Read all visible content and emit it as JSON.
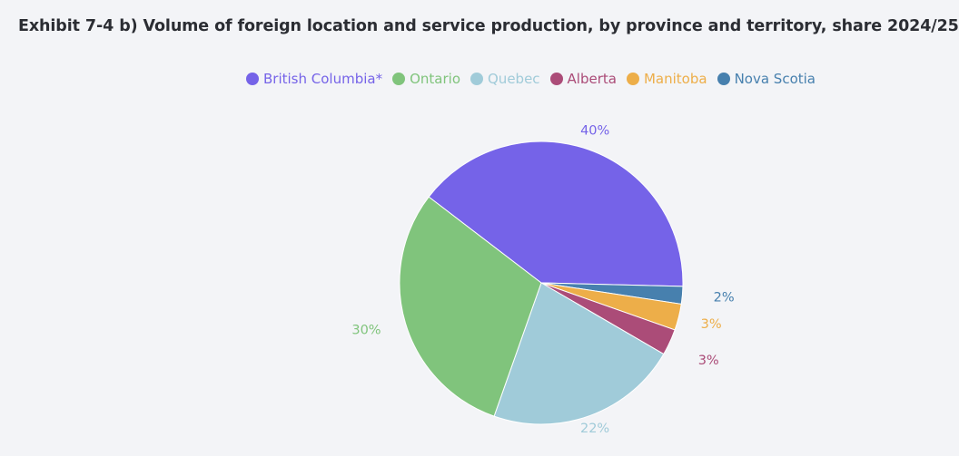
{
  "title": "Exhibit 7-4 b) Volume of foreign location and service production, by province and territory, share 2024/25",
  "chart_data": {
    "type": "pie",
    "title": "Exhibit 7-4 b) Volume of foreign location and service production, by province and territory, share 2024/25",
    "legend_position": "top",
    "slices": [
      {
        "name": "British Columbia*",
        "value": 40,
        "label": "40%",
        "color": "#7563e8"
      },
      {
        "name": "Nova Scotia",
        "value": 2,
        "label": "2%",
        "color": "#4780ae"
      },
      {
        "name": "Manitoba",
        "value": 3,
        "label": "3%",
        "color": "#edae49"
      },
      {
        "name": "Alberta",
        "value": 3,
        "label": "3%",
        "color": "#ab4c78"
      },
      {
        "name": "Quebec",
        "value": 22,
        "label": "22%",
        "color": "#a0cbd9"
      },
      {
        "name": "Ontario",
        "value": 30,
        "label": "30%",
        "color": "#80c47c"
      }
    ],
    "legend": [
      {
        "name": "British Columbia*",
        "color": "#7563e8"
      },
      {
        "name": "Ontario",
        "color": "#80c47c"
      },
      {
        "name": "Quebec",
        "color": "#a0cbd9"
      },
      {
        "name": "Alberta",
        "color": "#ab4c78"
      },
      {
        "name": "Manitoba",
        "color": "#edae49"
      },
      {
        "name": "Nova Scotia",
        "color": "#4780ae"
      }
    ]
  }
}
